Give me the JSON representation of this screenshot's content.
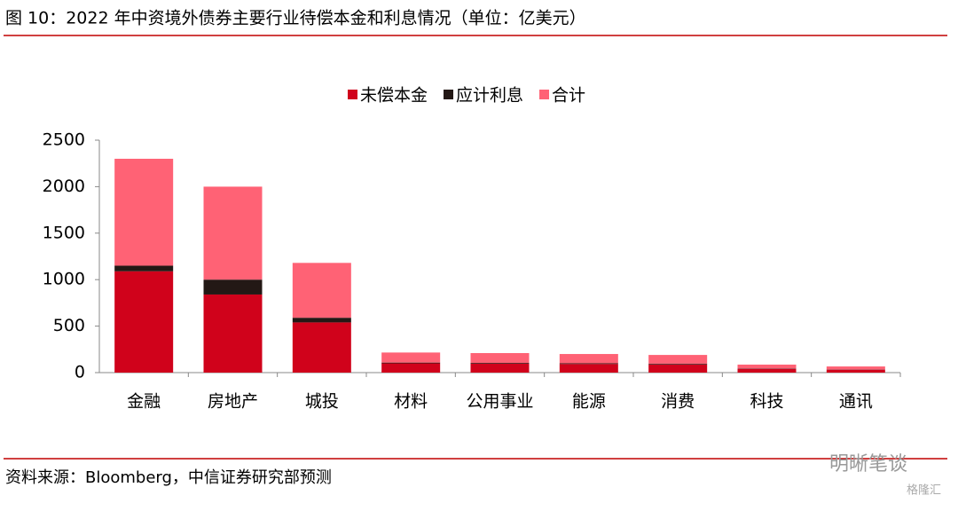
{
  "header": {
    "title": "图 10：2022 年中资境外债券主要行业待偿本金和利息情况（单位：亿美元）"
  },
  "footer": {
    "source": "资料来源：Bloomberg，中信证券研究部预测",
    "watermark": "明晰笔谈",
    "brand": "格隆汇"
  },
  "chart_data": {
    "type": "bar",
    "stacked": true,
    "categories": [
      "金融",
      "房地产",
      "城投",
      "材料",
      "公用事业",
      "能源",
      "消费",
      "科技",
      "通讯"
    ],
    "series": [
      {
        "name": "未偿本金",
        "color": "#d0021b",
        "values": [
          1090,
          840,
          540,
          100,
          98,
          93,
          88,
          40,
          31
        ]
      },
      {
        "name": "应计利息",
        "color": "#231815",
        "values": [
          60,
          160,
          50,
          8,
          7,
          7,
          7,
          3,
          2
        ]
      },
      {
        "name": "合计",
        "color": "#ff6275",
        "values": [
          1150,
          1000,
          590,
          108,
          105,
          100,
          95,
          43,
          33
        ]
      }
    ],
    "ylim": [
      0,
      2500
    ],
    "yticks": [
      0,
      500,
      1000,
      1500,
      2000,
      2500
    ],
    "legend": "top"
  }
}
